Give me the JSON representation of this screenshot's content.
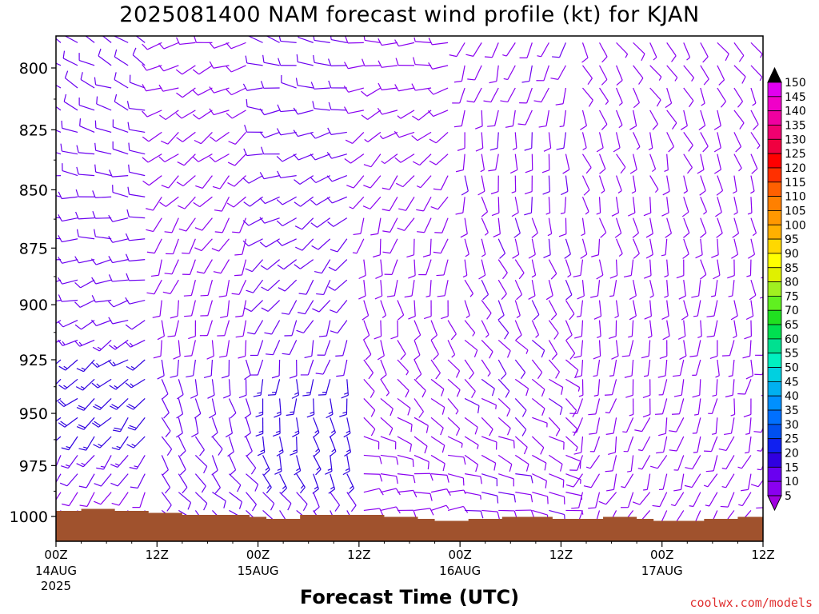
{
  "chart_data": {
    "type": "wind_barb_profile",
    "title": "2025081400 NAM forecast wind profile (kt) for KJAN",
    "xlabel": "Forecast Time (UTC)",
    "ylabel": "",
    "y_ticks": [
      800,
      825,
      850,
      875,
      900,
      925,
      950,
      975,
      1000
    ],
    "ylim": [
      1012,
      788
    ],
    "y_scale": "log-pressure (inverted)",
    "x_ticks": [
      {
        "label": "00Z",
        "sub": "14AUG",
        "sub2": "2025",
        "hour": 0
      },
      {
        "label": "12Z",
        "sub": "",
        "sub2": "",
        "hour": 12
      },
      {
        "label": "00Z",
        "sub": "15AUG",
        "sub2": "",
        "hour": 24
      },
      {
        "label": "12Z",
        "sub": "",
        "sub2": "",
        "hour": 36
      },
      {
        "label": "00Z",
        "sub": "16AUG",
        "sub2": "",
        "hour": 48
      },
      {
        "label": "12Z",
        "sub": "",
        "sub2": "",
        "hour": 60
      },
      {
        "label": "00Z",
        "sub": "17AUG",
        "sub2": "",
        "hour": 72
      },
      {
        "label": "12Z",
        "sub": "",
        "sub2": "",
        "hour": 84
      }
    ],
    "xlim_hours": [
      0,
      84
    ],
    "time_step_hours": 2,
    "colorbar": {
      "levels": [
        5,
        10,
        15,
        20,
        25,
        30,
        35,
        40,
        45,
        50,
        55,
        60,
        65,
        70,
        75,
        80,
        85,
        90,
        95,
        100,
        105,
        110,
        115,
        120,
        125,
        130,
        135,
        140,
        145,
        150
      ],
      "colors": [
        "#8a00f0",
        "#6a00f0",
        "#3000e0",
        "#1020f0",
        "#0050f0",
        "#0070ff",
        "#0090ff",
        "#00b0f0",
        "#00d0e0",
        "#00f0c0",
        "#00e090",
        "#00e050",
        "#20e020",
        "#60f020",
        "#a0f020",
        "#e0f000",
        "#ffff00",
        "#ffd800",
        "#ffb000",
        "#ff9800",
        "#ff8000",
        "#ff6000",
        "#ff3000",
        "#ff0000",
        "#f00040",
        "#f00070",
        "#f000a0",
        "#f000c8",
        "#e000f0"
      ],
      "over_color": "#000000",
      "under_color": "#a000e0"
    },
    "surface_pressure": [
      1000,
      1000,
      999,
      999,
      1000,
      1000,
      1001,
      1001,
      1002,
      1002,
      1002,
      1002,
      1003,
      1004,
      1004,
      1002,
      1002,
      1002,
      1002,
      1002,
      1003,
      1003,
      1004,
      1005,
      1005,
      1004,
      1004,
      1003,
      1003,
      1003,
      1004,
      1004,
      1004,
      1003,
      1003,
      1004,
      1005,
      1005,
      1005,
      1004,
      1004,
      1003,
      1003,
      1002,
      1002,
      1002,
      1002
    ],
    "surface_color": "#a0522d",
    "wind_levels_note": "Barbs plotted every 2 h at ~25 levels from surface to 790 hPa; color indicates speed in kt."
  },
  "credit": "coolwx.com/models"
}
